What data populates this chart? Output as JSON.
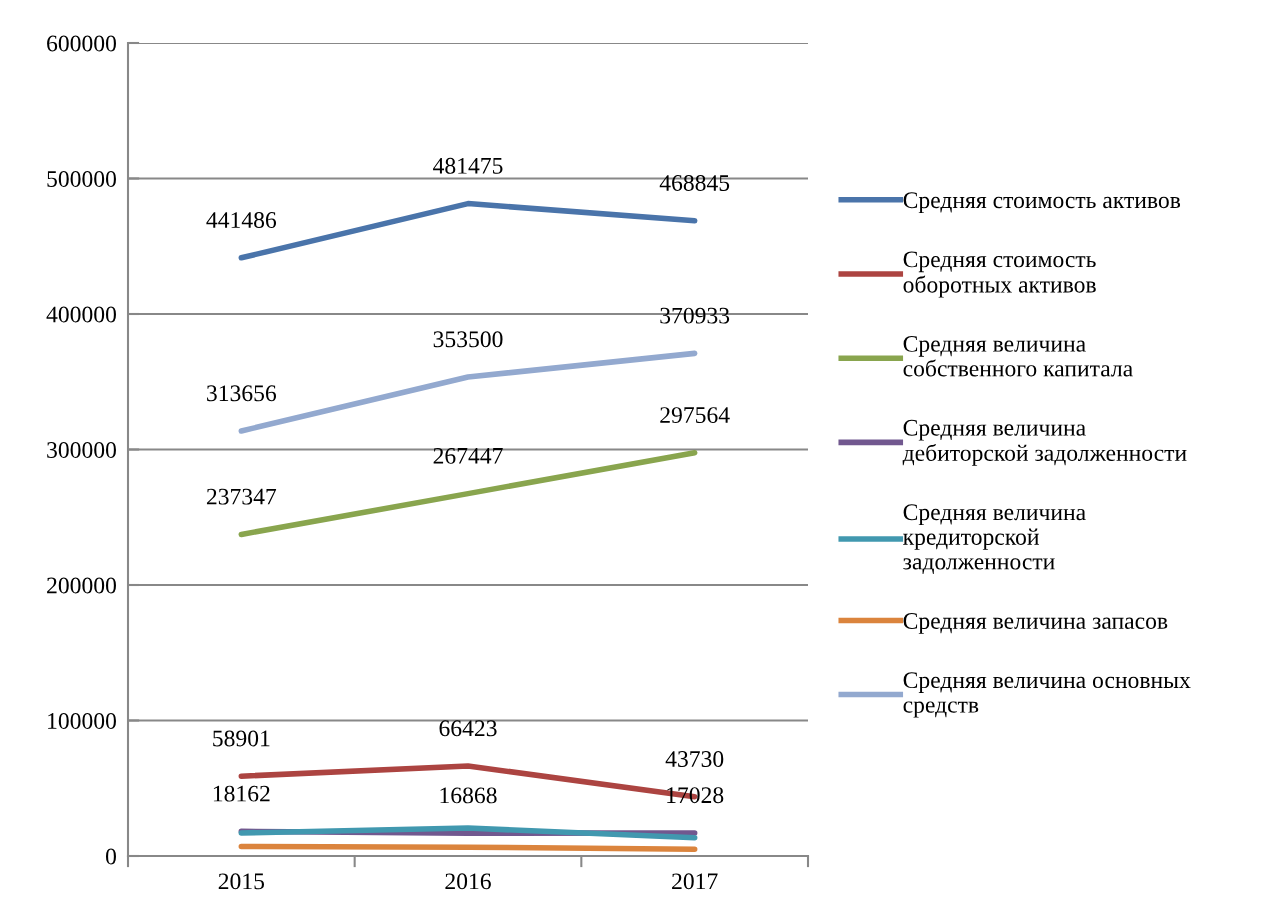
{
  "chart_data": {
    "type": "line",
    "categories": [
      "2015",
      "2016",
      "2017"
    ],
    "ylim": [
      0,
      600000
    ],
    "yticks": [
      0,
      100000,
      200000,
      300000,
      400000,
      500000,
      600000
    ],
    "grid": "y",
    "legend": "right",
    "marker": "none",
    "line_style": "solid",
    "series": [
      {
        "name": "Средняя стоимость активов",
        "color": "#4a74aa",
        "values": [
          441486,
          481475,
          468845
        ],
        "value_labels": [
          "441486",
          "481475",
          "468845"
        ]
      },
      {
        "name": "Средняя стоимость оборотных активов",
        "color": "#ac4441",
        "values": [
          58901,
          66423,
          43730
        ],
        "value_labels": [
          "58901",
          "66423",
          "43730"
        ]
      },
      {
        "name": "Средняя величина собственного капитала",
        "color": "#89a54e",
        "values": [
          237347,
          267447,
          297564
        ],
        "value_labels": [
          "237347",
          "267447",
          "297564"
        ]
      },
      {
        "name": "Средняя величина дебиторской задолженности",
        "color": "#71588f",
        "values": [
          18162,
          16868,
          17028
        ],
        "value_labels": [
          "18162",
          "16868",
          "17028"
        ]
      },
      {
        "name": "Средняя величина кредиторской задолженности",
        "color": "#4198af",
        "values": [
          17000,
          20600,
          13500
        ]
      },
      {
        "name": "Средняя величина запасов",
        "color": "#db843d",
        "values": [
          7000,
          6500,
          5000
        ]
      },
      {
        "name": "Средняя величина основных средств",
        "color": "#93a9cf",
        "values": [
          313656,
          353500,
          370933
        ],
        "value_labels": [
          "313656",
          "353500",
          "370933"
        ]
      }
    ]
  }
}
